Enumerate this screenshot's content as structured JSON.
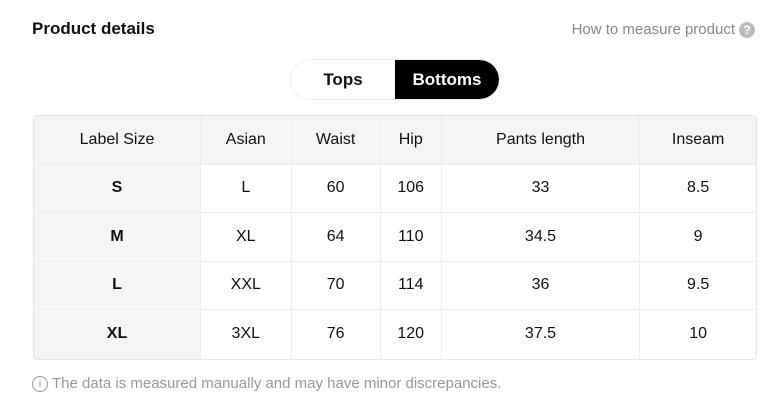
{
  "header": {
    "title": "Product details",
    "measure_link": "How to measure product",
    "measure_icon": "question-circle-icon"
  },
  "tabs": [
    {
      "label": "Tops",
      "active": false
    },
    {
      "label": "Bottoms",
      "active": true
    }
  ],
  "table": {
    "columns": [
      "Label Size",
      "Asian",
      "Waist",
      "Hip",
      "Pants length",
      "Inseam"
    ],
    "rows": [
      [
        "S",
        "L",
        "60",
        "106",
        "33",
        "8.5"
      ],
      [
        "M",
        "XL",
        "64",
        "110",
        "34.5",
        "9"
      ],
      [
        "L",
        "XXL",
        "70",
        "114",
        "36",
        "9.5"
      ],
      [
        "XL",
        "3XL",
        "76",
        "120",
        "37.5",
        "10"
      ]
    ]
  },
  "footer": {
    "note": "The data is measured manually and may have minor discrepancies.",
    "icon": "info-icon"
  }
}
